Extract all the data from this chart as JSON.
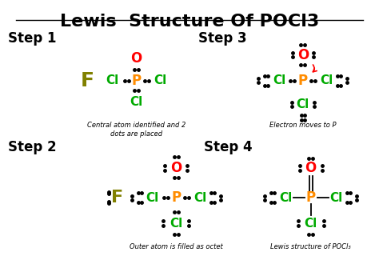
{
  "title": "Lewis  Structure Of POCl3",
  "bg_color": "#ffffff",
  "title_color": "#000000",
  "title_fontsize": 16,
  "step1_label": "Step 1",
  "step2_label": "Step 2",
  "step3_label": "Step 3",
  "step4_label": "Step 4",
  "caption1": "Central atom identified and 2\ndots are placed",
  "caption2": "Outer atom is filled as octet",
  "caption3": "Electron moves to P",
  "caption4": "Lewis structure of POCl₃",
  "green_color": "#00aa00",
  "orange_color": "#ff8c00",
  "red_color": "#ff0000",
  "olive_color": "#808000",
  "black_color": "#000000"
}
